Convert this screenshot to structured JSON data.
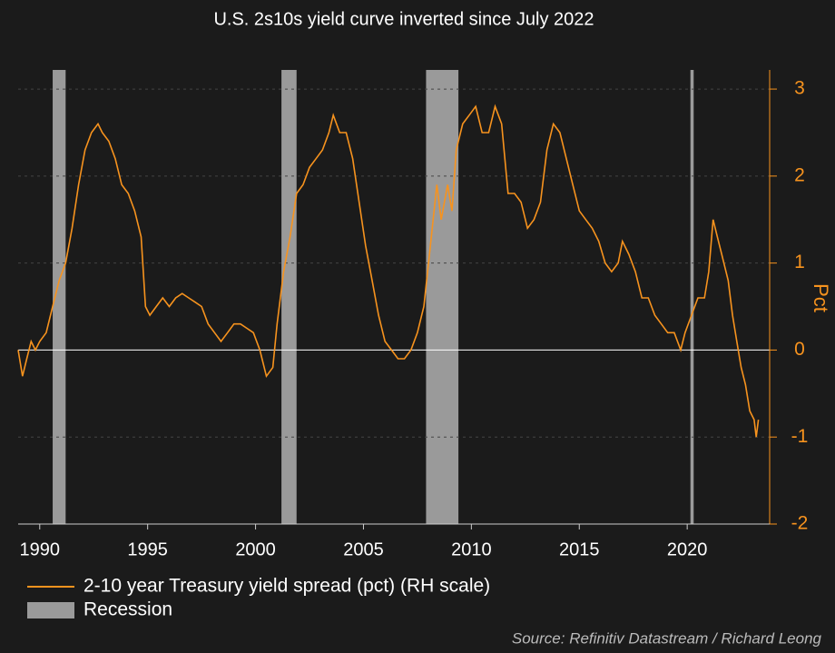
{
  "chart_data": {
    "type": "line",
    "title": "U.S. 2s10s yield curve inverted since July 2022",
    "y_label": "Pct",
    "source": "Source: Refinitiv Datastream / Richard Leong",
    "x": [
      1989.0,
      1989.2,
      1989.4,
      1989.6,
      1989.8,
      1990.0,
      1990.3,
      1990.6,
      1990.9,
      1991.2,
      1991.5,
      1991.8,
      1992.1,
      1992.4,
      1992.7,
      1992.9,
      1993.2,
      1993.5,
      1993.8,
      1994.1,
      1994.4,
      1994.7,
      1994.9,
      1995.1,
      1995.4,
      1995.7,
      1996.0,
      1996.3,
      1996.6,
      1996.9,
      1997.2,
      1997.5,
      1997.8,
      1998.1,
      1998.4,
      1998.7,
      1999.0,
      1999.3,
      1999.6,
      1999.9,
      2000.2,
      2000.5,
      2000.8,
      2001.0,
      2001.3,
      2001.6,
      2001.9,
      2002.2,
      2002.5,
      2002.8,
      2003.1,
      2003.4,
      2003.6,
      2003.9,
      2004.2,
      2004.5,
      2004.8,
      2005.1,
      2005.4,
      2005.7,
      2006.0,
      2006.3,
      2006.6,
      2006.9,
      2007.2,
      2007.5,
      2007.8,
      2008.1,
      2008.4,
      2008.6,
      2008.9,
      2009.1,
      2009.3,
      2009.6,
      2009.9,
      2010.2,
      2010.5,
      2010.8,
      2011.1,
      2011.4,
      2011.7,
      2012.0,
      2012.3,
      2012.6,
      2012.9,
      2013.2,
      2013.5,
      2013.8,
      2014.1,
      2014.4,
      2014.7,
      2015.0,
      2015.3,
      2015.6,
      2015.9,
      2016.2,
      2016.5,
      2016.8,
      2017.0,
      2017.3,
      2017.6,
      2017.9,
      2018.2,
      2018.5,
      2018.8,
      2019.1,
      2019.4,
      2019.7,
      2019.9,
      2020.2,
      2020.5,
      2020.8,
      2021.0,
      2021.2,
      2021.4,
      2021.6,
      2021.9,
      2022.1,
      2022.3,
      2022.5,
      2022.7,
      2022.9,
      2023.1,
      2023.2,
      2023.3
    ],
    "series": [
      {
        "name": "2-10 year Treasury yield spread (pct) (RH scale)",
        "color": "#f7931e",
        "values": [
          0.0,
          -0.3,
          -0.1,
          0.1,
          0.0,
          0.1,
          0.2,
          0.5,
          0.8,
          1.0,
          1.4,
          1.9,
          2.3,
          2.5,
          2.6,
          2.5,
          2.4,
          2.2,
          1.9,
          1.8,
          1.6,
          1.3,
          0.5,
          0.4,
          0.5,
          0.6,
          0.5,
          0.6,
          0.65,
          0.6,
          0.55,
          0.5,
          0.3,
          0.2,
          0.1,
          0.2,
          0.3,
          0.3,
          0.25,
          0.2,
          0.0,
          -0.3,
          -0.2,
          0.3,
          0.9,
          1.3,
          1.8,
          1.9,
          2.1,
          2.2,
          2.3,
          2.5,
          2.7,
          2.5,
          2.5,
          2.2,
          1.7,
          1.2,
          0.8,
          0.4,
          0.1,
          0.0,
          -0.1,
          -0.1,
          0.0,
          0.2,
          0.5,
          1.2,
          1.9,
          1.5,
          1.9,
          1.6,
          2.3,
          2.6,
          2.7,
          2.8,
          2.5,
          2.5,
          2.8,
          2.6,
          1.8,
          1.8,
          1.7,
          1.4,
          1.5,
          1.7,
          2.3,
          2.6,
          2.5,
          2.2,
          1.9,
          1.6,
          1.5,
          1.4,
          1.25,
          1.0,
          0.9,
          1.0,
          1.25,
          1.1,
          0.9,
          0.6,
          0.6,
          0.4,
          0.3,
          0.2,
          0.2,
          0.0,
          0.2,
          0.4,
          0.6,
          0.6,
          0.9,
          1.5,
          1.3,
          1.1,
          0.8,
          0.4,
          0.1,
          -0.2,
          -0.4,
          -0.7,
          -0.8,
          -1.0,
          -0.8
        ]
      }
    ],
    "recessions": {
      "name": "Recession",
      "color": "#9a9a9a",
      "spans": [
        [
          1990.6,
          1991.2
        ],
        [
          2001.2,
          2001.9
        ],
        [
          2007.9,
          2009.4
        ],
        [
          2020.15,
          2020.3
        ]
      ]
    },
    "xlim": [
      1989.0,
      2023.4
    ],
    "xticks": [
      1990,
      1995,
      2000,
      2005,
      2010,
      2015,
      2020
    ],
    "ylim": [
      -2,
      3.22
    ],
    "yticks": [
      -2,
      -1,
      0,
      1,
      2,
      3
    ],
    "grid": true
  }
}
